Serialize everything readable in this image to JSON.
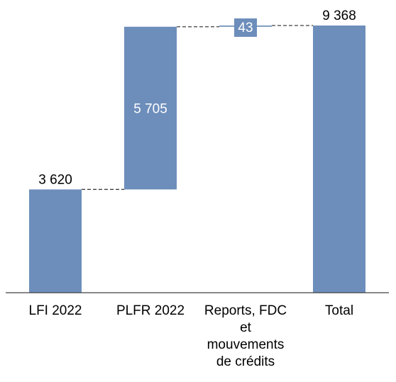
{
  "chart_data": {
    "type": "waterfall",
    "categories": [
      "LFI 2022",
      "PLFR 2022",
      "Reports, FDC et mouvements de crédits",
      "Total"
    ],
    "category_label_lines": [
      [
        "LFI 2022"
      ],
      [
        "PLFR 2022"
      ],
      [
        "Reports, FDC",
        "et",
        "mouvements",
        "de crédits"
      ],
      [
        "Total"
      ]
    ],
    "values": [
      3620,
      5705,
      43,
      9368
    ],
    "value_labels": [
      "3 620",
      "5 705",
      "43",
      "9 368"
    ],
    "bases": [
      0,
      3620,
      9325,
      0
    ],
    "ylim": [
      0,
      9368
    ],
    "grid": false,
    "legend": "none",
    "title": "",
    "xlabel": "",
    "ylabel": "",
    "colors": {
      "bar": "#6D8EBB",
      "connector": "#404040",
      "axis": "#404040",
      "label_outside": "#000000",
      "label_inside": "#ffffff"
    }
  }
}
